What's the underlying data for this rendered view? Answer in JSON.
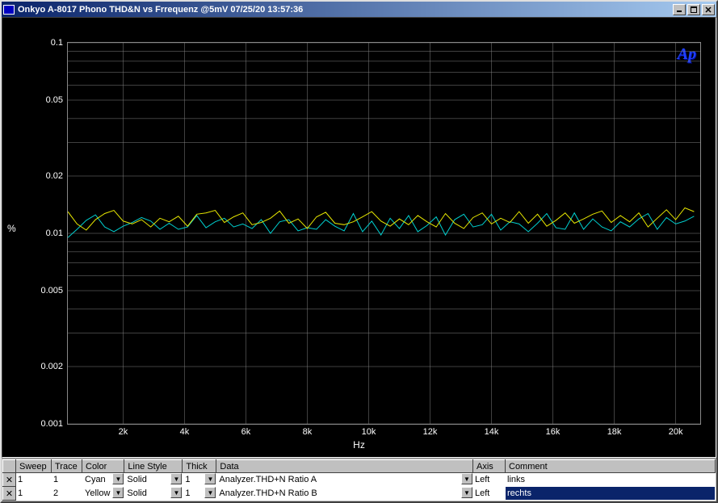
{
  "window": {
    "title": "Onkyo A-8017 Phono THD&N vs Frrequenz @5mV  07/25/20 13:57:36"
  },
  "chart": {
    "type": "line",
    "y_label": "%",
    "x_label": "Hz",
    "watermark": "Ap",
    "y_scale": "log",
    "ylim": [
      0.001,
      0.1
    ],
    "y_ticks": [
      {
        "v": 0.1,
        "label": "0.1"
      },
      {
        "v": 0.05,
        "label": "0.05"
      },
      {
        "v": 0.02,
        "label": "0.02"
      },
      {
        "v": 0.01,
        "label": "0.01"
      },
      {
        "v": 0.005,
        "label": "0.005"
      },
      {
        "v": 0.002,
        "label": "0.002"
      },
      {
        "v": 0.001,
        "label": "0.001"
      }
    ],
    "y_grid": [
      0.1,
      0.09,
      0.08,
      0.07,
      0.06,
      0.05,
      0.04,
      0.03,
      0.02,
      0.01,
      0.009,
      0.008,
      0.007,
      0.006,
      0.005,
      0.004,
      0.003,
      0.002,
      0.001
    ],
    "x_scale": "linear",
    "xlim": [
      200,
      20800
    ],
    "x_ticks": [
      {
        "v": 2000,
        "label": "2k"
      },
      {
        "v": 4000,
        "label": "4k"
      },
      {
        "v": 6000,
        "label": "6k"
      },
      {
        "v": 8000,
        "label": "8k"
      },
      {
        "v": 10000,
        "label": "10k"
      },
      {
        "v": 12000,
        "label": "12k"
      },
      {
        "v": 14000,
        "label": "14k"
      },
      {
        "v": 16000,
        "label": "16k"
      },
      {
        "v": 18000,
        "label": "18k"
      },
      {
        "v": 20000,
        "label": "20k"
      }
    ],
    "x_grid": [
      2000,
      4000,
      6000,
      8000,
      10000,
      12000,
      14000,
      16000,
      18000,
      20000
    ],
    "grid_color": "#808080",
    "background_color": "#000000",
    "series": [
      {
        "name": "A",
        "color": "#00d0d0",
        "line_width": 1,
        "points": [
          [
            200,
            0.0095
          ],
          [
            500,
            0.0105
          ],
          [
            800,
            0.0117
          ],
          [
            1100,
            0.0125
          ],
          [
            1400,
            0.0108
          ],
          [
            1700,
            0.0102
          ],
          [
            2000,
            0.0109
          ],
          [
            2300,
            0.0114
          ],
          [
            2600,
            0.0121
          ],
          [
            2900,
            0.0116
          ],
          [
            3200,
            0.0105
          ],
          [
            3500,
            0.0113
          ],
          [
            3800,
            0.0105
          ],
          [
            4100,
            0.0108
          ],
          [
            4400,
            0.0124
          ],
          [
            4700,
            0.0107
          ],
          [
            5000,
            0.0115
          ],
          [
            5300,
            0.012
          ],
          [
            5600,
            0.0108
          ],
          [
            5900,
            0.0112
          ],
          [
            6200,
            0.0106
          ],
          [
            6500,
            0.0118
          ],
          [
            6800,
            0.01
          ],
          [
            7100,
            0.0115
          ],
          [
            7400,
            0.0118
          ],
          [
            7700,
            0.0103
          ],
          [
            8000,
            0.0107
          ],
          [
            8300,
            0.0105
          ],
          [
            8600,
            0.0118
          ],
          [
            8900,
            0.0109
          ],
          [
            9200,
            0.0103
          ],
          [
            9500,
            0.0127
          ],
          [
            9800,
            0.0102
          ],
          [
            10100,
            0.0116
          ],
          [
            10400,
            0.0098
          ],
          [
            10700,
            0.012
          ],
          [
            11000,
            0.0106
          ],
          [
            11300,
            0.0124
          ],
          [
            11600,
            0.0102
          ],
          [
            11900,
            0.011
          ],
          [
            12200,
            0.0122
          ],
          [
            12500,
            0.0098
          ],
          [
            12800,
            0.0118
          ],
          [
            13100,
            0.0126
          ],
          [
            13400,
            0.0108
          ],
          [
            13700,
            0.0111
          ],
          [
            14000,
            0.0126
          ],
          [
            14300,
            0.0104
          ],
          [
            14600,
            0.0115
          ],
          [
            14900,
            0.0112
          ],
          [
            15200,
            0.0102
          ],
          [
            15500,
            0.0113
          ],
          [
            15800,
            0.0127
          ],
          [
            16100,
            0.0107
          ],
          [
            16400,
            0.0105
          ],
          [
            16700,
            0.0128
          ],
          [
            17000,
            0.0105
          ],
          [
            17300,
            0.0119
          ],
          [
            17600,
            0.0108
          ],
          [
            17900,
            0.0103
          ],
          [
            18200,
            0.0115
          ],
          [
            18500,
            0.0108
          ],
          [
            18800,
            0.0119
          ],
          [
            19100,
            0.0127
          ],
          [
            19400,
            0.0105
          ],
          [
            19700,
            0.0121
          ],
          [
            20000,
            0.0112
          ],
          [
            20300,
            0.0116
          ],
          [
            20600,
            0.0123
          ]
        ]
      },
      {
        "name": "B",
        "color": "#e8e800",
        "line_width": 1,
        "points": [
          [
            200,
            0.013
          ],
          [
            500,
            0.0112
          ],
          [
            800,
            0.0104
          ],
          [
            1100,
            0.0118
          ],
          [
            1400,
            0.0127
          ],
          [
            1700,
            0.0132
          ],
          [
            2000,
            0.0116
          ],
          [
            2300,
            0.0112
          ],
          [
            2600,
            0.0118
          ],
          [
            2900,
            0.0108
          ],
          [
            3200,
            0.012
          ],
          [
            3500,
            0.0115
          ],
          [
            3800,
            0.0123
          ],
          [
            4100,
            0.0109
          ],
          [
            4400,
            0.0126
          ],
          [
            4700,
            0.0128
          ],
          [
            5000,
            0.0132
          ],
          [
            5300,
            0.0114
          ],
          [
            5600,
            0.0122
          ],
          [
            5900,
            0.0128
          ],
          [
            6200,
            0.0111
          ],
          [
            6500,
            0.0114
          ],
          [
            6800,
            0.012
          ],
          [
            7100,
            0.0131
          ],
          [
            7400,
            0.0113
          ],
          [
            7700,
            0.0119
          ],
          [
            8000,
            0.0106
          ],
          [
            8300,
            0.0122
          ],
          [
            8600,
            0.0129
          ],
          [
            8900,
            0.0113
          ],
          [
            9200,
            0.0111
          ],
          [
            9500,
            0.0115
          ],
          [
            9800,
            0.0122
          ],
          [
            10100,
            0.013
          ],
          [
            10400,
            0.0116
          ],
          [
            10700,
            0.0109
          ],
          [
            11000,
            0.0119
          ],
          [
            11300,
            0.0111
          ],
          [
            11600,
            0.0124
          ],
          [
            11900,
            0.0115
          ],
          [
            12200,
            0.0108
          ],
          [
            12500,
            0.0127
          ],
          [
            12800,
            0.0113
          ],
          [
            13100,
            0.0106
          ],
          [
            13400,
            0.0121
          ],
          [
            13700,
            0.0128
          ],
          [
            14000,
            0.0112
          ],
          [
            14300,
            0.012
          ],
          [
            14600,
            0.0114
          ],
          [
            14900,
            0.013
          ],
          [
            15200,
            0.0113
          ],
          [
            15500,
            0.0126
          ],
          [
            15800,
            0.0109
          ],
          [
            16100,
            0.0117
          ],
          [
            16400,
            0.0128
          ],
          [
            16700,
            0.0113
          ],
          [
            17000,
            0.0119
          ],
          [
            17300,
            0.0126
          ],
          [
            17600,
            0.0131
          ],
          [
            17900,
            0.0114
          ],
          [
            18200,
            0.0124
          ],
          [
            18500,
            0.0115
          ],
          [
            18800,
            0.0128
          ],
          [
            19100,
            0.0108
          ],
          [
            19400,
            0.012
          ],
          [
            19700,
            0.0133
          ],
          [
            20000,
            0.0118
          ],
          [
            20300,
            0.0136
          ],
          [
            20600,
            0.013
          ]
        ]
      }
    ]
  },
  "trace_table": {
    "headers": [
      "Sweep",
      "Trace",
      "Color",
      "Line Style",
      "Thick",
      "Data",
      "Axis",
      "Comment"
    ],
    "rows": [
      {
        "sweep": "1",
        "trace": "1",
        "color": "Cyan",
        "line_style": "Solid",
        "thick": "1",
        "data": "Analyzer.THD+N Ratio A",
        "axis": "Left",
        "comment": "links",
        "selected": false
      },
      {
        "sweep": "1",
        "trace": "2",
        "color": "Yellow",
        "line_style": "Solid",
        "thick": "1",
        "data": "Analyzer.THD+N Ratio B",
        "axis": "Left",
        "comment": "rechts",
        "selected": true
      }
    ]
  }
}
